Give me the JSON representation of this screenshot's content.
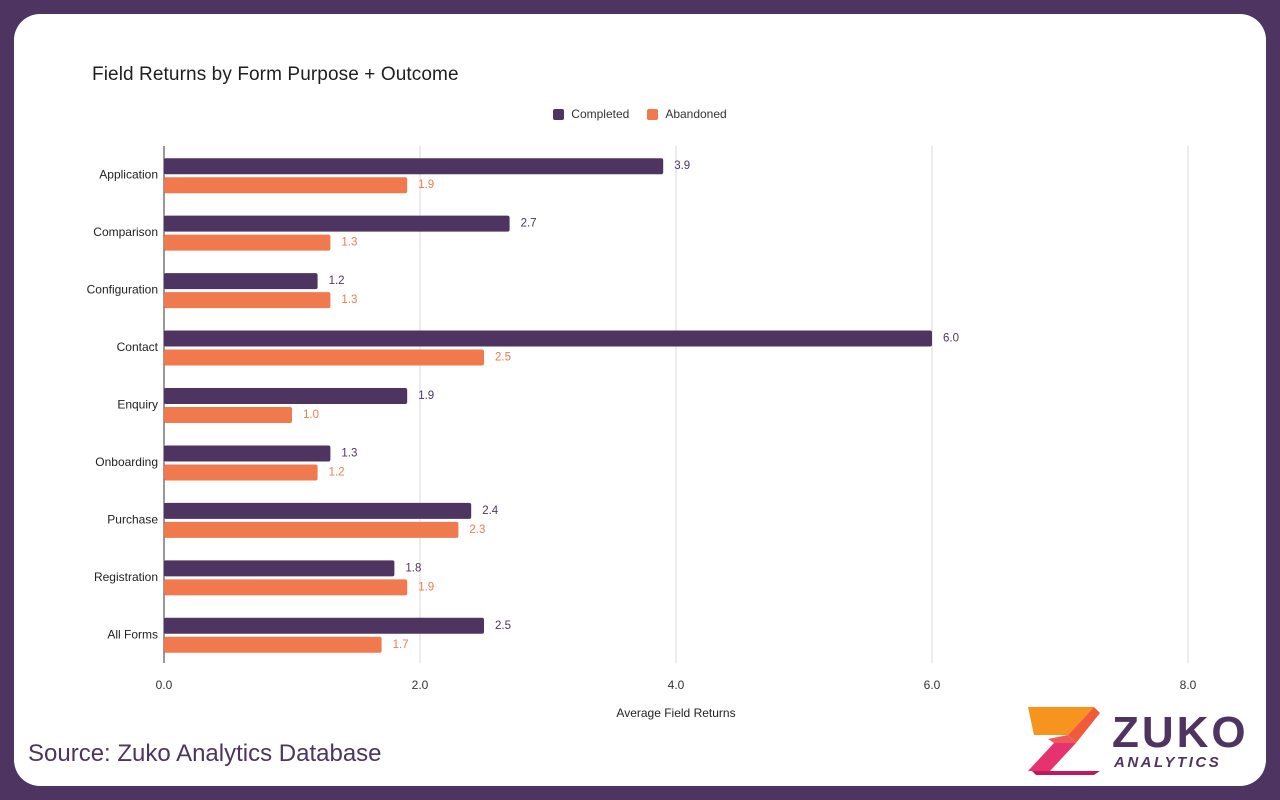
{
  "chart_data": {
    "type": "bar",
    "orientation": "horizontal",
    "title": "Field Returns by Form Purpose + Outcome",
    "xlabel": "Average Field Returns",
    "ylabel": "",
    "xlim": [
      0,
      8
    ],
    "x_ticks": [
      "0.0",
      "2.0",
      "4.0",
      "6.0",
      "8.0"
    ],
    "grid": true,
    "legend_position": "top-center",
    "categories": [
      "Application",
      "Comparison",
      "Configuration",
      "Contact",
      "Enquiry",
      "Onboarding",
      "Purchase",
      "Registration",
      "All Forms"
    ],
    "series": [
      {
        "name": "Completed",
        "color": "#4e3461",
        "values": [
          3.9,
          2.7,
          1.2,
          6.0,
          1.9,
          1.3,
          2.4,
          1.8,
          2.5
        ],
        "labels": [
          "3.9",
          "2.7",
          "1.2",
          "6.0",
          "1.9",
          "1.3",
          "2.4",
          "1.8",
          "2.5"
        ]
      },
      {
        "name": "Abandoned",
        "color": "#f07a4e",
        "values": [
          1.9,
          1.3,
          1.3,
          2.5,
          1.0,
          1.2,
          2.3,
          1.9,
          1.7
        ],
        "labels": [
          "1.9",
          "1.3",
          "1.3",
          "2.5",
          "1.0",
          "1.2",
          "2.3",
          "1.9",
          "1.7"
        ]
      }
    ]
  },
  "footer": {
    "source": "Source: Zuko Analytics Database",
    "logo_word": "ZUKO",
    "logo_sub": "ANALYTICS"
  },
  "colors": {
    "frame": "#4e3461",
    "completed": "#4e3461",
    "abandoned": "#f07a4e",
    "logo_orange": "#f7941d",
    "logo_pink": "#e6336f"
  }
}
